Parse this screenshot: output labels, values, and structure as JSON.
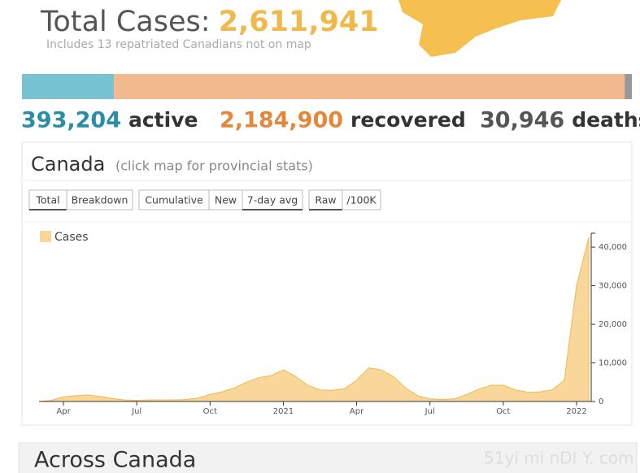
{
  "header": {
    "title": "Total Cases:",
    "total": {
      "value": 2611941,
      "label": "2,611,941"
    },
    "note": "Includes 13 repatriated Canadians not on map"
  },
  "stats": [
    {
      "value": 393204,
      "label": "393,204",
      "name": "active",
      "color": "#2b8ea6",
      "bar_color": "#78c3d1"
    },
    {
      "value": 2184900,
      "label": "2,184,900",
      "name": "recovered",
      "color": "#e4873a",
      "bar_color": "#f2b98f"
    },
    {
      "value": 30946,
      "label": "30,946",
      "name": "deaths",
      "color": "#555555",
      "bar_color": "#999999"
    }
  ],
  "panel": {
    "title": "Canada",
    "hint": "(click map for provincial stats)",
    "buttons": [
      [
        "Total",
        "Breakdown"
      ],
      [
        "Cumulative",
        "New",
        "7-day avg"
      ],
      [
        "Raw",
        "/100K"
      ]
    ]
  },
  "chart_data": {
    "type": "area",
    "categories": [
      null,
      null,
      "Apr",
      null,
      null,
      null,
      null,
      null,
      "Jul",
      null,
      null,
      null,
      null,
      null,
      "Oct",
      null,
      null,
      null,
      null,
      null,
      "2021",
      null,
      null,
      null,
      null,
      null,
      "Apr",
      null,
      null,
      null,
      null,
      null,
      "Jul",
      null,
      null,
      null,
      null,
      null,
      "Oct",
      null,
      null,
      null,
      null,
      null,
      "2022",
      null
    ],
    "series": [
      {
        "name": "Cases",
        "color": "#f9d79b",
        "values": [
          0,
          300,
          1200,
          1500,
          1700,
          1300,
          800,
          400,
          300,
          400,
          400,
          400,
          500,
          900,
          1800,
          2500,
          3500,
          5000,
          6200,
          6700,
          8200,
          6500,
          4200,
          3000,
          2900,
          3300,
          5500,
          8700,
          8200,
          6500,
          3500,
          1500,
          700,
          500,
          700,
          1800,
          3200,
          4200,
          4200,
          3000,
          2400,
          2500,
          3000,
          5500,
          30000,
          42500
        ]
      }
    ],
    "ylim": [
      0,
      43600
    ],
    "yticks": [
      0,
      {
        "value": 10000,
        "label": "10,000"
      },
      {
        "value": 20000,
        "label": "20,000"
      },
      {
        "value": 30000,
        "label": "30,000"
      },
      {
        "value": 40000,
        "label": "40,000"
      }
    ],
    "legend": "top-left"
  },
  "section": {
    "title": "Across Canada"
  },
  "watermark": "51yi mi nDI Y. com"
}
